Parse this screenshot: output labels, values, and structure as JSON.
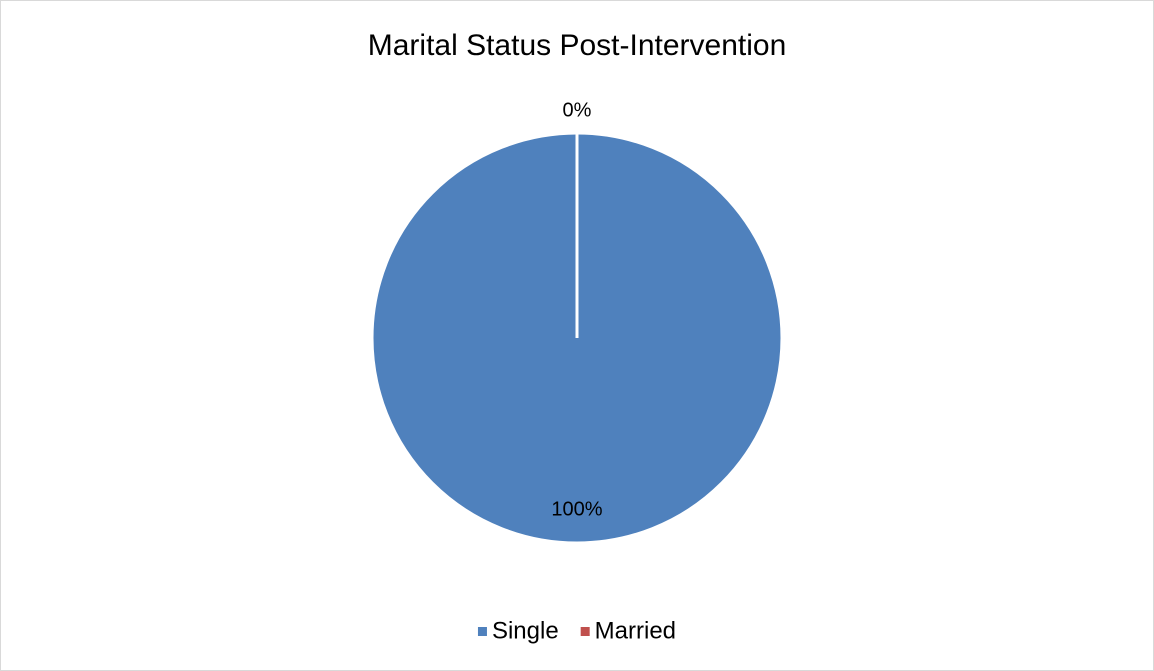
{
  "chart_data": {
    "type": "pie",
    "title": "Marital Status Post-Intervention",
    "categories": [
      "Single",
      "Married"
    ],
    "values": [
      100,
      0
    ],
    "value_labels": [
      "100%",
      "0%"
    ],
    "colors": [
      "#4f81bd",
      "#c0504d"
    ],
    "legend": "bottom"
  }
}
